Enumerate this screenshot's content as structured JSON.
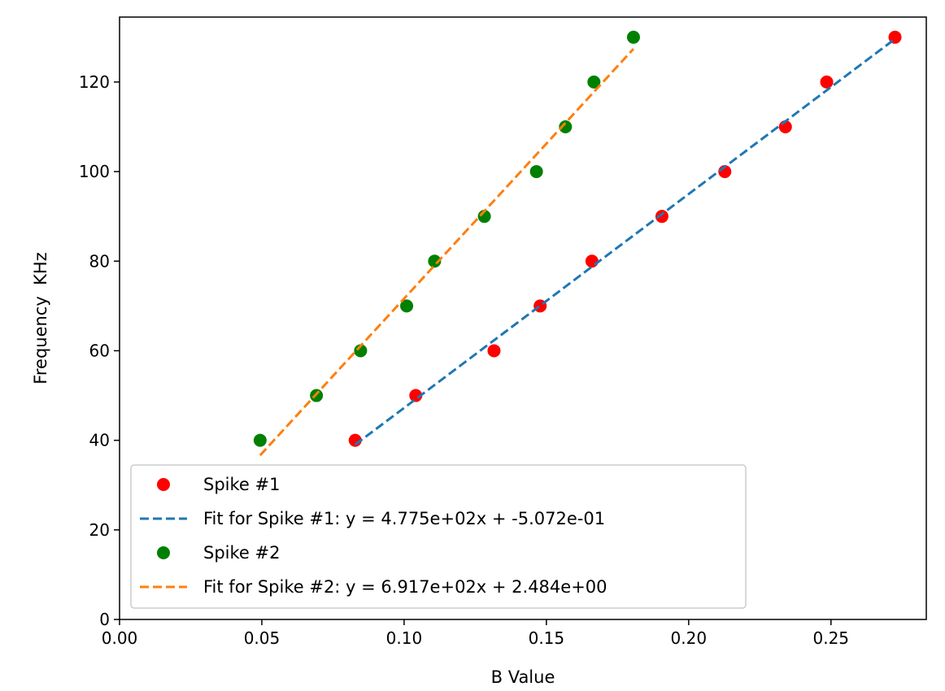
{
  "chart_data": {
    "type": "scatter",
    "title": "",
    "xlabel": "B Value",
    "ylabel": "Frequency  KHz",
    "xlim": [
      0,
      0.2835
    ],
    "ylim": [
      0,
      134.5
    ],
    "xticks": [
      0.0,
      0.05,
      0.1,
      0.15,
      0.2,
      0.25
    ],
    "xtick_labels": [
      "0.00",
      "0.05",
      "0.10",
      "0.15",
      "0.20",
      "0.25"
    ],
    "yticks": [
      0,
      20,
      40,
      60,
      80,
      100,
      120
    ],
    "ytick_labels": [
      "0",
      "20",
      "40",
      "60",
      "80",
      "100",
      "120"
    ],
    "grid": false,
    "legend_position": "bottom-left",
    "series": [
      {
        "name": "Spike #1",
        "kind": "scatter",
        "color": "#ff0000",
        "x": [
          0.0828,
          0.1041,
          0.1316,
          0.1478,
          0.166,
          0.1906,
          0.2127,
          0.234,
          0.2485,
          0.2725
        ],
        "y": [
          40,
          50,
          60,
          70,
          80,
          90,
          100,
          110,
          120,
          130
        ]
      },
      {
        "name": "Fit for Spike #1: y = 4.775e+02x + -5.072e-01",
        "kind": "line",
        "style": "dashed",
        "color": "#1f77b4",
        "slope": 477.5,
        "intercept": -0.5072,
        "x_range": [
          0.0828,
          0.2725
        ]
      },
      {
        "name": "Spike #2",
        "kind": "scatter",
        "color": "#008000",
        "x": [
          0.0494,
          0.0692,
          0.0847,
          0.1009,
          0.1107,
          0.1282,
          0.1465,
          0.1567,
          0.1667,
          0.1806
        ],
        "y": [
          40,
          50,
          60,
          70,
          80,
          90,
          100,
          110,
          120,
          130
        ]
      },
      {
        "name": "Fit for Spike #2: y = 6.917e+02x + 2.484e+00",
        "kind": "line",
        "style": "dashed",
        "color": "#ff7f0e",
        "slope": 691.7,
        "intercept": 2.484,
        "x_range": [
          0.0494,
          0.1806
        ]
      }
    ]
  }
}
